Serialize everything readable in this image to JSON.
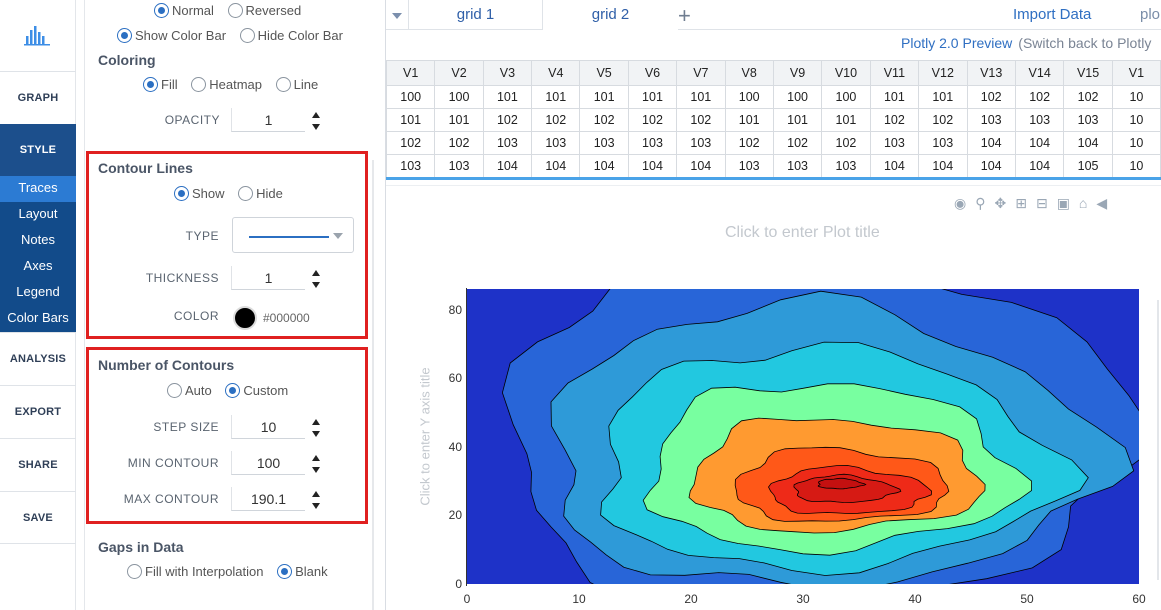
{
  "nav": {
    "items": [
      {
        "label": "GRAPH"
      },
      {
        "label": "STYLE"
      },
      {
        "label": "ANALYSIS"
      },
      {
        "label": "EXPORT"
      },
      {
        "label": "SHARE"
      },
      {
        "label": "SAVE"
      }
    ],
    "style_sub": [
      "Traces",
      "Layout",
      "Notes",
      "Axes",
      "Legend",
      "Color Bars"
    ],
    "active_sub": "Traces"
  },
  "panel": {
    "colorscale": {
      "options": [
        "Normal",
        "Reversed"
      ],
      "selected": "Normal"
    },
    "colorbar": {
      "options": [
        "Show Color Bar",
        "Hide Color Bar"
      ],
      "selected": "Show Color Bar"
    },
    "coloring": {
      "title": "Coloring",
      "options": [
        "Fill",
        "Heatmap",
        "Line"
      ],
      "selected": "Fill"
    },
    "opacity": {
      "label": "OPACITY",
      "value": "1"
    },
    "contour_lines": {
      "title": "Contour Lines",
      "show_options": [
        "Show",
        "Hide"
      ],
      "selected": "Show",
      "type_label": "TYPE",
      "thickness_label": "THICKNESS",
      "thickness": "1",
      "color_label": "COLOR",
      "color": "#000000"
    },
    "num_contours": {
      "title": "Number of Contours",
      "options": [
        "Auto",
        "Custom"
      ],
      "selected": "Custom",
      "step_label": "STEP SIZE",
      "step": "10",
      "min_label": "MIN CONTOUR",
      "min": "100",
      "max_label": "MAX CONTOUR",
      "max": "190.1"
    },
    "gaps": {
      "title": "Gaps in Data",
      "options": [
        "Fill with Interpolation",
        "Blank"
      ],
      "selected": "Blank"
    }
  },
  "tabs": {
    "items": [
      "grid 1",
      "grid 2"
    ],
    "active": "grid 2",
    "import": "Import Data",
    "plot_link": "plo",
    "preview": "Plotly 2.0 Preview",
    "switch_back": "(Switch back to Plotly"
  },
  "grid": {
    "headers": [
      "V1",
      "V2",
      "V3",
      "V4",
      "V5",
      "V6",
      "V7",
      "V8",
      "V9",
      "V10",
      "V11",
      "V12",
      "V13",
      "V14",
      "V15",
      "V1"
    ],
    "rows": [
      [
        "100",
        "100",
        "101",
        "101",
        "101",
        "101",
        "101",
        "100",
        "100",
        "100",
        "101",
        "101",
        "102",
        "102",
        "102",
        "10"
      ],
      [
        "101",
        "101",
        "102",
        "102",
        "102",
        "102",
        "102",
        "101",
        "101",
        "101",
        "102",
        "102",
        "103",
        "103",
        "103",
        "10"
      ],
      [
        "102",
        "102",
        "103",
        "103",
        "103",
        "103",
        "103",
        "102",
        "102",
        "102",
        "103",
        "103",
        "104",
        "104",
        "104",
        "10"
      ],
      [
        "103",
        "103",
        "104",
        "104",
        "104",
        "104",
        "104",
        "103",
        "103",
        "103",
        "104",
        "104",
        "104",
        "104",
        "105",
        "10"
      ]
    ]
  },
  "plot": {
    "title_placeholder": "Click to enter Plot title",
    "y_title_placeholder": "Click to enter Y axis title",
    "modebar_icons": [
      "camera-icon",
      "zoom-icon",
      "pan-icon",
      "zoom-in-icon",
      "zoom-out-icon",
      "autoscale-icon",
      "home-icon",
      "tag-icon"
    ]
  },
  "chart_data": {
    "type": "heatmap",
    "subtype": "contour",
    "title": "",
    "xlabel": "",
    "ylabel": "",
    "x_ticks": [
      "0",
      "10",
      "20",
      "30",
      "40",
      "50",
      "60"
    ],
    "y_ticks": [
      "0",
      "20",
      "40",
      "60",
      "80"
    ],
    "xlim": [
      0,
      60
    ],
    "ylim": [
      0,
      86
    ],
    "contour_start": 100,
    "contour_end": 190.1,
    "contour_step": 10,
    "colors": [
      "#1e32c8",
      "#2865d8",
      "#2e9ad8",
      "#22c8e0",
      "#78ffa0",
      "#ff9a30",
      "#ff5818",
      "#ee2a18",
      "#d61a14",
      "#c41010"
    ],
    "peak": {
      "x": 33,
      "y": 29
    }
  }
}
